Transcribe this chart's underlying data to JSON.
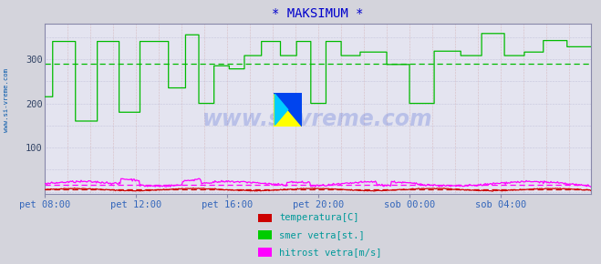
{
  "title": "* MAKSIMUM *",
  "title_color": "#0000cc",
  "bg_color": "#d4d4dc",
  "plot_bg_color": "#e4e4f0",
  "watermark": "www.si-vreme.com",
  "watermark_color": "#2244cc",
  "watermark_alpha": 0.22,
  "ylim": [
    -5,
    380
  ],
  "yticks": [
    100,
    200,
    300
  ],
  "total_points": 576,
  "avg_smer": 289,
  "avg_temp": 5,
  "avg_hitrost": 15,
  "line_colors": {
    "temperatura": "#cc0000",
    "smer": "#00bb00",
    "hitrost": "#ff00ff"
  },
  "legend_labels": [
    "temperatura[C]",
    "smer vetra[st.]",
    "hitrost vetra[m/s]"
  ],
  "legend_colors": [
    "#cc0000",
    "#00cc00",
    "#ff00ff"
  ],
  "xtick_labels": [
    "pet 08:00",
    "pet 12:00",
    "pet 16:00",
    "pet 20:00",
    "sob 00:00",
    "sob 04:00"
  ],
  "xtick_positions": [
    0,
    96,
    192,
    288,
    384,
    480
  ],
  "sidebar_text": "www.si-vreme.com",
  "sidebar_color": "#0055aa",
  "tick_label_color": "#3366bb",
  "ytick_color": "#334466",
  "vgrid_major_color": "#cc8888",
  "vgrid_minor_color": "#cc9999",
  "hgrid_color": "#aaaacc",
  "spine_color": "#8888aa"
}
